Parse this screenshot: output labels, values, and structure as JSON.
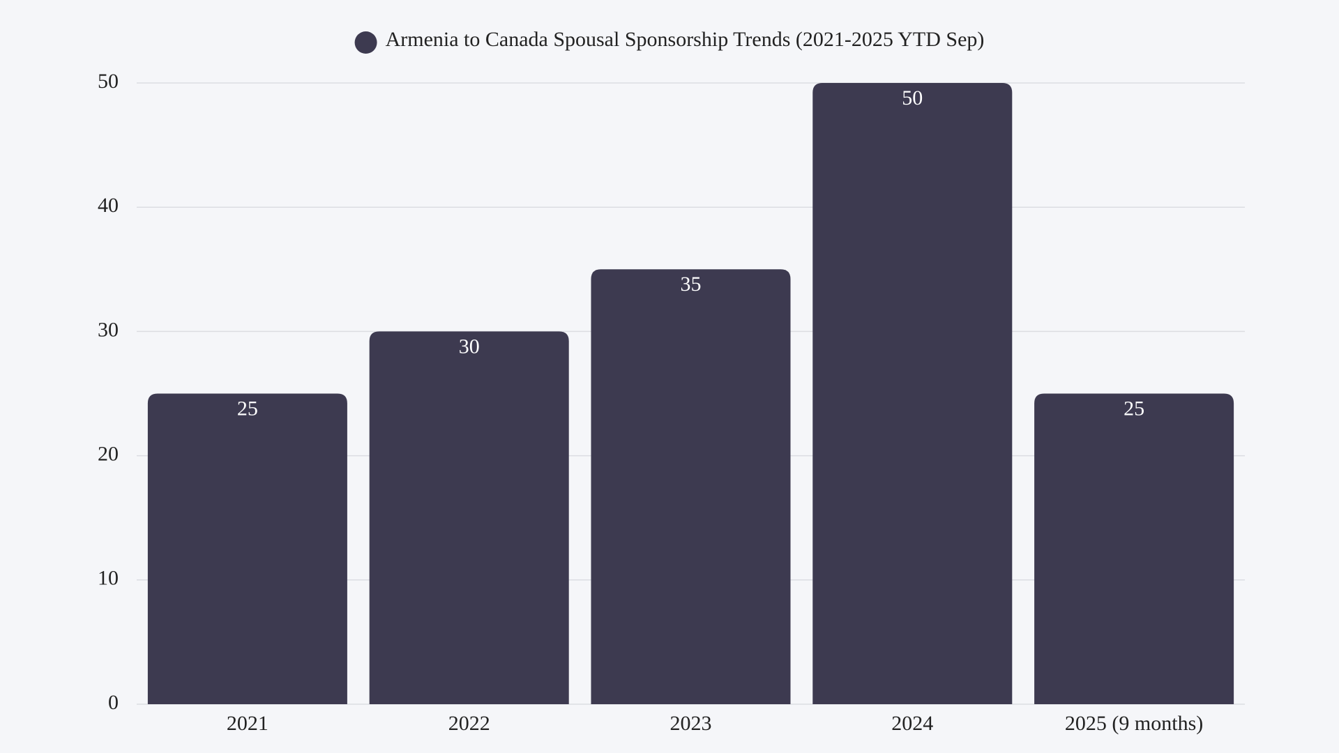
{
  "chart_data": {
    "type": "bar",
    "categories": [
      "2021",
      "2022",
      "2023",
      "2024",
      "2025 (9 months)"
    ],
    "series": [
      {
        "name": "Armenia to Canada Spousal Sponsorship Trends (2021-2025 YTD Sep)",
        "color": "#3d3a50",
        "values": [
          25,
          30,
          35,
          50,
          25
        ]
      }
    ],
    "ylim": [
      0,
      50
    ],
    "yticks": [
      0,
      10,
      20,
      30,
      40,
      50
    ],
    "grid": true,
    "legend": "top"
  }
}
